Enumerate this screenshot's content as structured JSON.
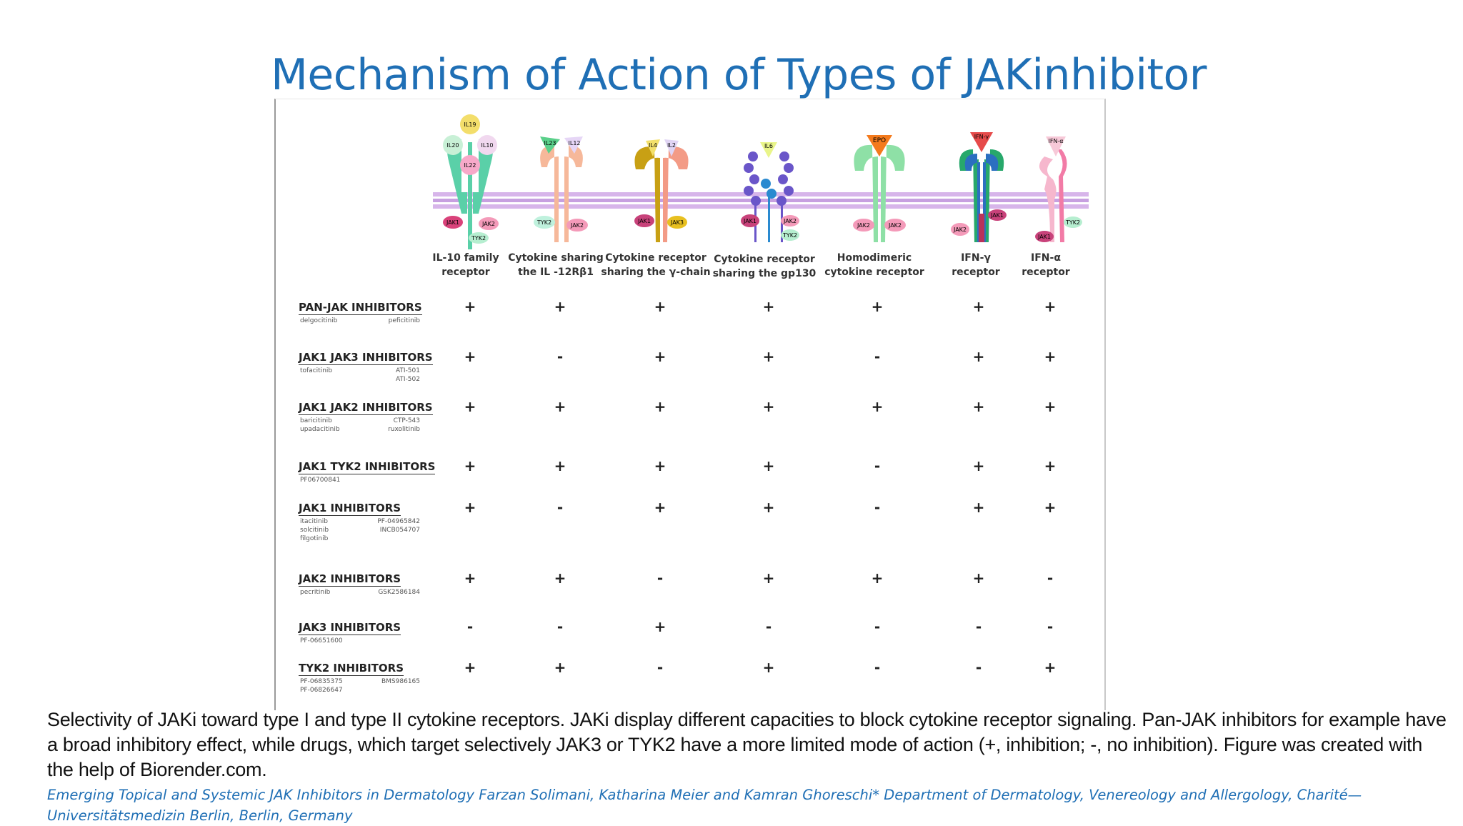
{
  "title": "Mechanism of Action of Types of JAKinhibitor",
  "columns": [
    {
      "label_line1": "IL-10 family",
      "label_line2": "receptor",
      "cytokines": [
        "IL19",
        "IL20",
        "IL10",
        "IL22"
      ],
      "jaks": [
        "JAK1",
        "JAK2",
        "TYK2"
      ]
    },
    {
      "label_line1": "Cytokine sharing",
      "label_line2": "the IL -12Rβ1",
      "cytokines": [
        "IL23",
        "IL12"
      ],
      "jaks": [
        "TYK2",
        "JAK2"
      ]
    },
    {
      "label_line1": "Cytokine receptor",
      "label_line2": "sharing the γ-chain",
      "cytokines": [
        "IL4",
        "IL2"
      ],
      "jaks": [
        "JAK1",
        "JAK3"
      ]
    },
    {
      "label_line1": "Cytokine receptor",
      "label_line2": "sharing the gp130",
      "cytokines": [
        "IL6"
      ],
      "jaks": [
        "JAK1",
        "JAK2",
        "TYK2"
      ]
    },
    {
      "label_line1": "Homodimeric",
      "label_line2": "cytokine  receptor",
      "cytokines": [
        "EPO"
      ],
      "jaks": [
        "JAK2",
        "JAK2"
      ]
    },
    {
      "label_line1": "IFN-γ",
      "label_line2": "receptor",
      "cytokines": [
        "IFN-γ"
      ],
      "jaks": [
        "JAK2",
        "JAK1"
      ]
    },
    {
      "label_line1": "IFN-α",
      "label_line2": "receptor",
      "cytokines": [
        "IFN-α"
      ],
      "jaks": [
        "JAK1",
        "TYK2"
      ]
    }
  ],
  "rows": [
    {
      "name": "PAN-JAK INHIBITORS",
      "drugs_left": [
        "delgocitinib"
      ],
      "drugs_right": [
        "peficitinib"
      ],
      "values": [
        "+",
        "+",
        "+",
        "+",
        "+",
        "+",
        "+"
      ]
    },
    {
      "name": "JAK1 JAK3 INHIBITORS",
      "drugs_left": [
        "tofacitinib"
      ],
      "drugs_right": [
        "ATI-501",
        "ATI-502"
      ],
      "values": [
        "+",
        "-",
        "+",
        "+",
        "-",
        "+",
        "+"
      ]
    },
    {
      "name": "JAK1 JAK2 INHIBITORS",
      "drugs_left": [
        "baricitinib",
        "upadacitinib"
      ],
      "drugs_right": [
        "CTP-543",
        "ruxolitinib"
      ],
      "values": [
        "+",
        "+",
        "+",
        "+",
        "+",
        "+",
        "+"
      ]
    },
    {
      "name": "JAK1 TYK2 INHIBITORS",
      "drugs_left": [
        "PF06700841"
      ],
      "drugs_right": [],
      "values": [
        "+",
        "+",
        "+",
        "+",
        "-",
        "+",
        "+"
      ]
    },
    {
      "name": "JAK1 INHIBITORS",
      "drugs_left": [
        "itacitinib",
        "solcitinib",
        "filgotinib"
      ],
      "drugs_right": [
        "PF-04965842",
        "INCB054707"
      ],
      "values": [
        "+",
        "-",
        "+",
        "+",
        "-",
        "+",
        "+"
      ]
    },
    {
      "name": "JAK2 INHIBITORS",
      "drugs_left": [
        "pecritinib"
      ],
      "drugs_right": [
        "GSK2586184"
      ],
      "values": [
        "+",
        "+",
        "-",
        "+",
        "+",
        "+",
        "-"
      ]
    },
    {
      "name": "JAK3 INHIBITORS",
      "drugs_left": [
        "PF-06651600"
      ],
      "drugs_right": [],
      "values": [
        "-",
        "-",
        "+",
        "-",
        "-",
        "-",
        "-"
      ]
    },
    {
      "name": "TYK2 INHIBITORS",
      "drugs_left": [
        "PF-06835375",
        "PF-06826647"
      ],
      "drugs_right": [
        "BMS986165"
      ],
      "values": [
        "+",
        "+",
        "-",
        "+",
        "-",
        "-",
        "+"
      ]
    }
  ],
  "caption": "Selectivity of JAKi toward type I and type II cytokine receptors. JAKi display different capacities to block cytokine receptor signaling. Pan-JAK inhibitors for example have a broad inhibitory effect, while drugs, which target selectively JAK3 or TYK2 have a more limited mode of action (+, inhibition; -, no inhibition). Figure was created with the help of Biorender.com.",
  "citation": "Emerging Topical and Systemic JAK Inhibitors in Dermatology Farzan Solimani, Katharina Meier and Kamran Ghoreschi* Department of Dermatology, Venereology and Allergology, Charité—Universitätsmedizin Berlin, Berlin, Germany",
  "colors": {
    "title": "#1f6fb5",
    "membrane": "#d7b5ea",
    "il10_receptor": "#5ad0a8",
    "il12_receptor": "#f6b89a",
    "gamma_receptor": "#c8a014",
    "gamma_receptor2": "#f39b86",
    "gp130_receptor": "#6a56c9",
    "homodimer_receptor": "#8ee0a6",
    "ifng_receptor": "#27a86b",
    "ifna_receptor": "#f27ba6"
  }
}
